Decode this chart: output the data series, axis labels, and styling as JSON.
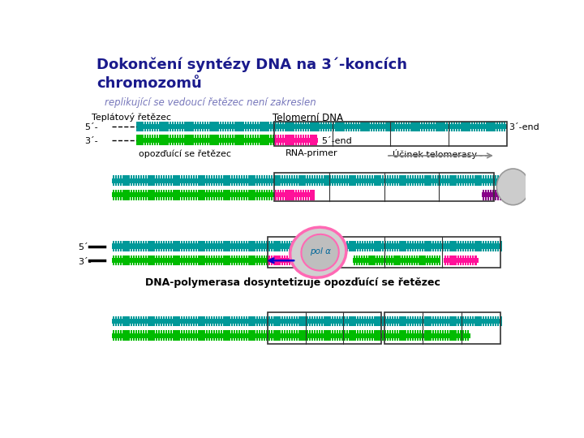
{
  "title": "Dokončení syntézy DNA na 3´-koncích\nchromozomů",
  "subtitle": "replikující se vedoucí řetězec není zakreslen",
  "label_template": "Teplátový řetězec",
  "label_telomere": "Telomerní DNA",
  "label_3end": "3´-end",
  "label_5end": "5´-end",
  "label_rna": "RNA-primer",
  "label_telomerase": "Účinek telomerasy",
  "label_opozd": "opozďuící se řetězec",
  "label_polymerase": "DNA-polymerasa dosyntetizuje opozďuící se řetězec",
  "label_5prime": "5´-",
  "label_3prime": "3´-",
  "color_teal": "#009999",
  "color_green": "#00BB00",
  "color_magenta": "#FF1199",
  "color_purple": "#880088",
  "color_pink": "#FF69B4",
  "color_gray": "#AAAAAA",
  "color_dark_blue": "#1A1A8C",
  "color_box": "#333333"
}
